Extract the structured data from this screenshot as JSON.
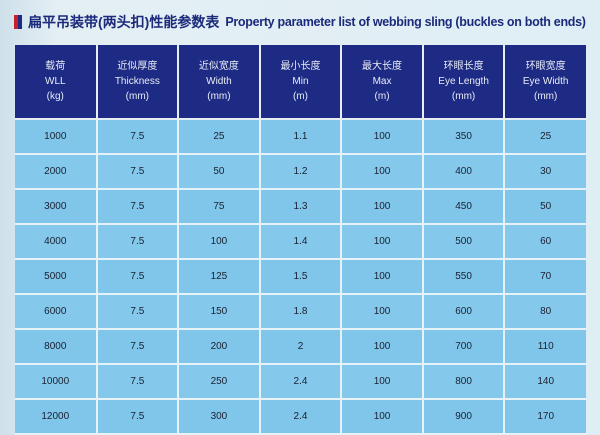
{
  "title": {
    "zh": "扁平吊装带(两头扣)性能参数表",
    "en": "Property parameter list of webbing sling (buckles on both ends)",
    "mark_colors": [
      "#c8202a",
      "#1d2b84"
    ]
  },
  "table": {
    "headers": [
      {
        "zh": "载荷",
        "en": "WLL",
        "unit": "(kg)"
      },
      {
        "zh": "近似厚度",
        "en": "Thickness",
        "unit": "(mm)"
      },
      {
        "zh": "近似宽度",
        "en": "Width",
        "unit": "(mm)"
      },
      {
        "zh": "最小长度",
        "en": "Min",
        "unit": "(m)"
      },
      {
        "zh": "最大长度",
        "en": "Max",
        "unit": "(m)"
      },
      {
        "zh": "环眼长度",
        "en": "Eye Length",
        "unit": "(mm)"
      },
      {
        "zh": "环眼宽度",
        "en": "Eye Width",
        "unit": "(mm)"
      }
    ],
    "rows": [
      [
        "1000",
        "7.5",
        "25",
        "1.1",
        "100",
        "350",
        "25"
      ],
      [
        "2000",
        "7.5",
        "50",
        "1.2",
        "100",
        "400",
        "30"
      ],
      [
        "3000",
        "7.5",
        "75",
        "1.3",
        "100",
        "450",
        "50"
      ],
      [
        "4000",
        "7.5",
        "100",
        "1.4",
        "100",
        "500",
        "60"
      ],
      [
        "5000",
        "7.5",
        "125",
        "1.5",
        "100",
        "550",
        "70"
      ],
      [
        "6000",
        "7.5",
        "150",
        "1.8",
        "100",
        "600",
        "80"
      ],
      [
        "8000",
        "7.5",
        "200",
        "2",
        "100",
        "700",
        "110"
      ],
      [
        "10000",
        "7.5",
        "250",
        "2.4",
        "100",
        "800",
        "140"
      ],
      [
        "12000",
        "7.5",
        "300",
        "2.4",
        "100",
        "900",
        "170"
      ]
    ],
    "colors": {
      "header_bg": "#1d2b84",
      "cell_bg": "#84c9ec"
    }
  }
}
